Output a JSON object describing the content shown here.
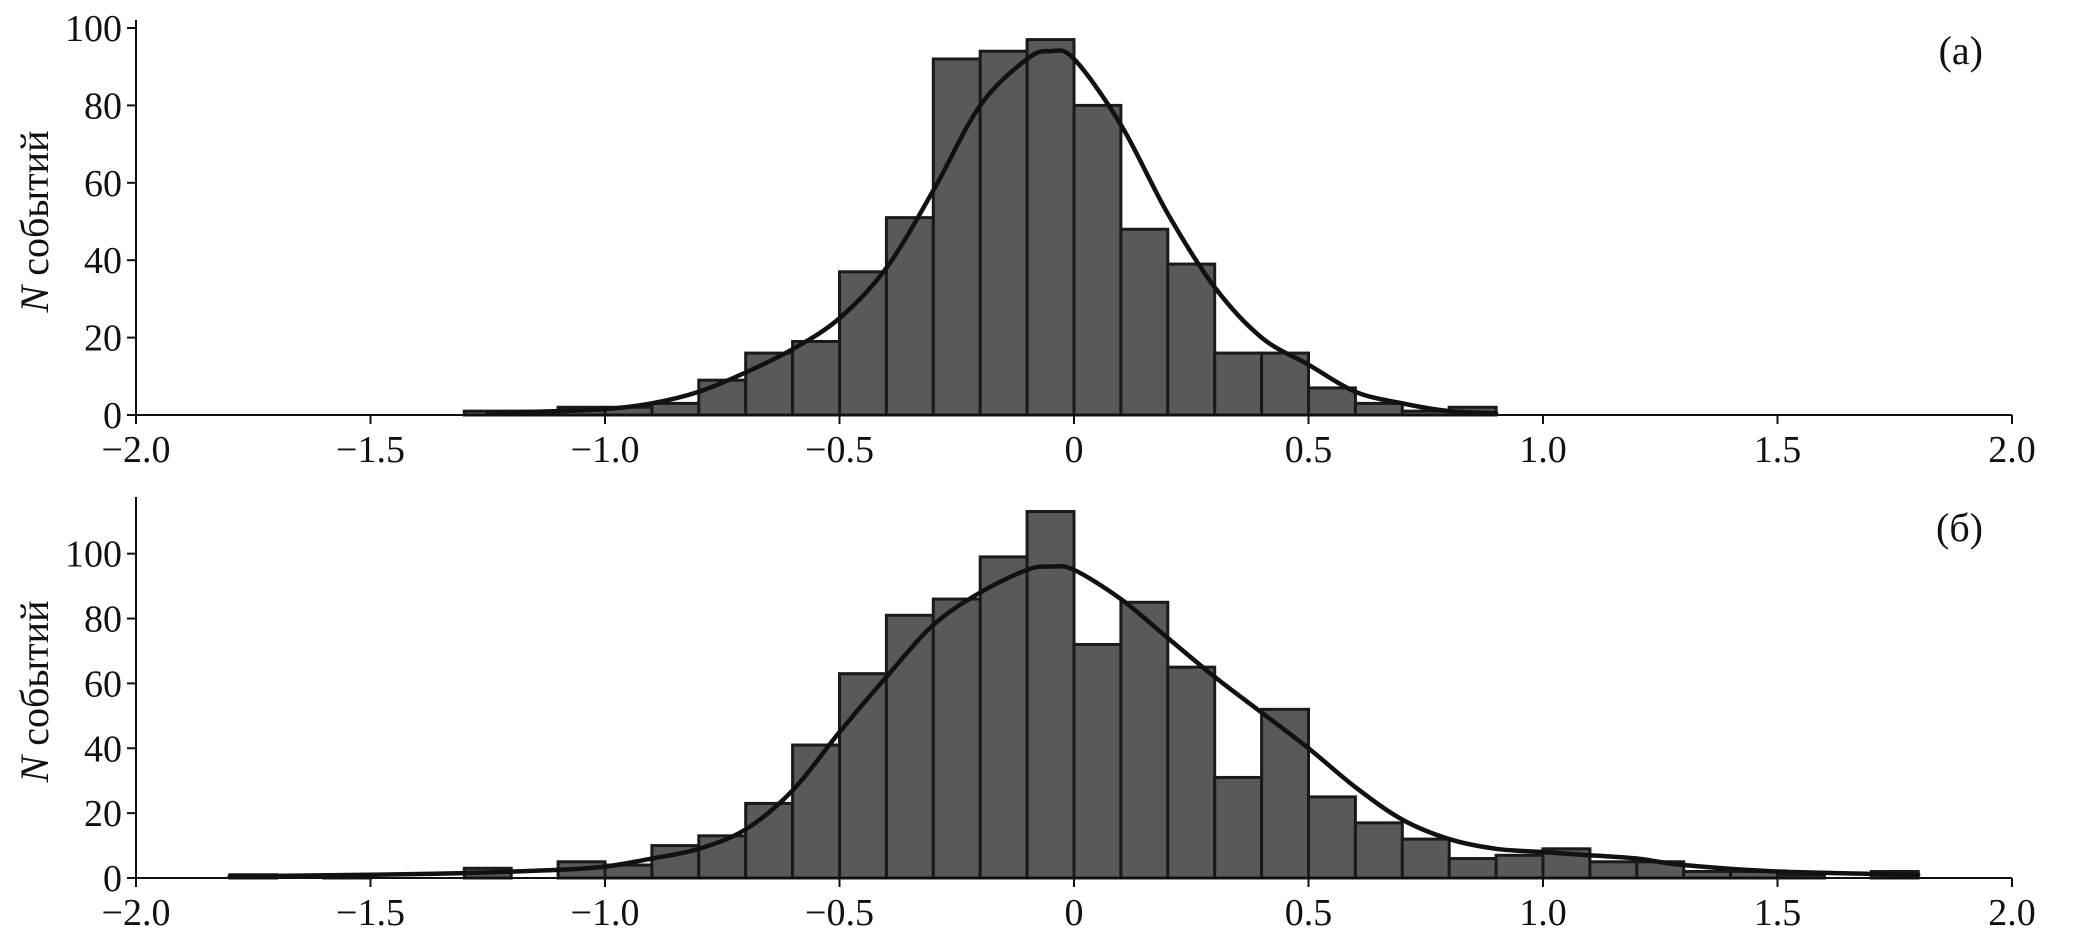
{
  "chart_data": [
    {
      "type": "histogram",
      "panel_label": "(а)",
      "ylabel_italic": "N",
      "ylabel_rest": " событий",
      "xlabel": "",
      "xlim": [
        -2.0,
        2.0
      ],
      "ylim": [
        0,
        100
      ],
      "x_ticks": [
        -2.0,
        -1.5,
        -1.0,
        -0.5,
        0,
        0.5,
        1.0,
        1.5,
        2.0
      ],
      "x_tick_labels": [
        "−2.0",
        "−1.5",
        "−1.0",
        "−0.5",
        "0",
        "0.5",
        "1.0",
        "1.5",
        "2.0"
      ],
      "y_ticks": [
        0,
        20,
        40,
        60,
        80,
        100
      ],
      "y_tick_labels": [
        "0",
        "20",
        "40",
        "60",
        "80",
        "100"
      ],
      "bin_width": 0.1,
      "bins": [
        {
          "x0": -1.3,
          "count": 1
        },
        {
          "x0": -1.2,
          "count": 1
        },
        {
          "x0": -1.1,
          "count": 2
        },
        {
          "x0": -1.0,
          "count": 2
        },
        {
          "x0": -0.9,
          "count": 3
        },
        {
          "x0": -0.8,
          "count": 9
        },
        {
          "x0": -0.7,
          "count": 16
        },
        {
          "x0": -0.6,
          "count": 19
        },
        {
          "x0": -0.5,
          "count": 37
        },
        {
          "x0": -0.4,
          "count": 51
        },
        {
          "x0": -0.3,
          "count": 92
        },
        {
          "x0": -0.2,
          "count": 94
        },
        {
          "x0": -0.1,
          "count": 97
        },
        {
          "x0": 0.0,
          "count": 80
        },
        {
          "x0": 0.1,
          "count": 48
        },
        {
          "x0": 0.2,
          "count": 39
        },
        {
          "x0": 0.3,
          "count": 16
        },
        {
          "x0": 0.4,
          "count": 16
        },
        {
          "x0": 0.5,
          "count": 7
        },
        {
          "x0": 0.6,
          "count": 3
        },
        {
          "x0": 0.7,
          "count": 1
        },
        {
          "x0": 0.8,
          "count": 2
        }
      ],
      "kde_curve": {
        "x": [
          -1.25,
          -1.1,
          -1.0,
          -0.9,
          -0.8,
          -0.7,
          -0.6,
          -0.5,
          -0.4,
          -0.3,
          -0.2,
          -0.1,
          -0.05,
          0.0,
          0.1,
          0.2,
          0.3,
          0.4,
          0.5,
          0.6,
          0.7,
          0.8,
          0.9
        ],
        "y": [
          0.5,
          1,
          1.5,
          3,
          6,
          11,
          17,
          25,
          38,
          58,
          80,
          92,
          94,
          92,
          75,
          52,
          33,
          20,
          13,
          6,
          3,
          1,
          0.5
        ]
      },
      "bar_color": "#595959",
      "curve_color": "#111111"
    },
    {
      "type": "histogram",
      "panel_label": "(б)",
      "ylabel_italic": "N",
      "ylabel_rest": " событий",
      "xlabel": "",
      "xlim": [
        -2.0,
        2.0
      ],
      "ylim": [
        0,
        115
      ],
      "x_ticks": [
        -2.0,
        -1.5,
        -1.0,
        -0.5,
        0,
        0.5,
        1.0,
        1.5,
        2.0
      ],
      "x_tick_labels": [
        "−2.0",
        "−1.5",
        "−1.0",
        "−0.5",
        "0",
        "0.5",
        "1.0",
        "1.5",
        "2.0"
      ],
      "y_ticks": [
        0,
        20,
        40,
        60,
        80,
        100
      ],
      "y_tick_labels": [
        "0",
        "20",
        "40",
        "60",
        "80",
        "100"
      ],
      "bin_width": 0.1,
      "bins": [
        {
          "x0": -1.8,
          "count": 1
        },
        {
          "x0": -1.6,
          "count": 1
        },
        {
          "x0": -1.3,
          "count": 3
        },
        {
          "x0": -1.1,
          "count": 5
        },
        {
          "x0": -1.0,
          "count": 4
        },
        {
          "x0": -0.9,
          "count": 10
        },
        {
          "x0": -0.8,
          "count": 13
        },
        {
          "x0": -0.7,
          "count": 23
        },
        {
          "x0": -0.6,
          "count": 41
        },
        {
          "x0": -0.5,
          "count": 63
        },
        {
          "x0": -0.4,
          "count": 81
        },
        {
          "x0": -0.3,
          "count": 86
        },
        {
          "x0": -0.2,
          "count": 99
        },
        {
          "x0": -0.1,
          "count": 113
        },
        {
          "x0": 0.0,
          "count": 72
        },
        {
          "x0": 0.1,
          "count": 85
        },
        {
          "x0": 0.2,
          "count": 65
        },
        {
          "x0": 0.3,
          "count": 31
        },
        {
          "x0": 0.4,
          "count": 52
        },
        {
          "x0": 0.5,
          "count": 25
        },
        {
          "x0": 0.6,
          "count": 17
        },
        {
          "x0": 0.7,
          "count": 12
        },
        {
          "x0": 0.8,
          "count": 6
        },
        {
          "x0": 0.9,
          "count": 7
        },
        {
          "x0": 1.0,
          "count": 9
        },
        {
          "x0": 1.1,
          "count": 5
        },
        {
          "x0": 1.2,
          "count": 5
        },
        {
          "x0": 1.3,
          "count": 2
        },
        {
          "x0": 1.4,
          "count": 2
        },
        {
          "x0": 1.5,
          "count": 1
        },
        {
          "x0": 1.7,
          "count": 2
        }
      ],
      "kde_curve": {
        "x": [
          -1.8,
          -1.5,
          -1.3,
          -1.1,
          -1.0,
          -0.9,
          -0.8,
          -0.7,
          -0.6,
          -0.5,
          -0.4,
          -0.3,
          -0.2,
          -0.1,
          -0.05,
          0.0,
          0.1,
          0.2,
          0.3,
          0.4,
          0.5,
          0.6,
          0.7,
          0.8,
          0.9,
          1.0,
          1.1,
          1.2,
          1.3,
          1.5,
          1.8
        ],
        "y": [
          0.5,
          1,
          1.5,
          2.5,
          3.5,
          6,
          9,
          15,
          27,
          45,
          62,
          78,
          88,
          95,
          96,
          95,
          86,
          74,
          62,
          51,
          40,
          28,
          18,
          12,
          9,
          8,
          7,
          6,
          4,
          2,
          1
        ]
      },
      "bar_color": "#595959",
      "curve_color": "#111111"
    }
  ]
}
